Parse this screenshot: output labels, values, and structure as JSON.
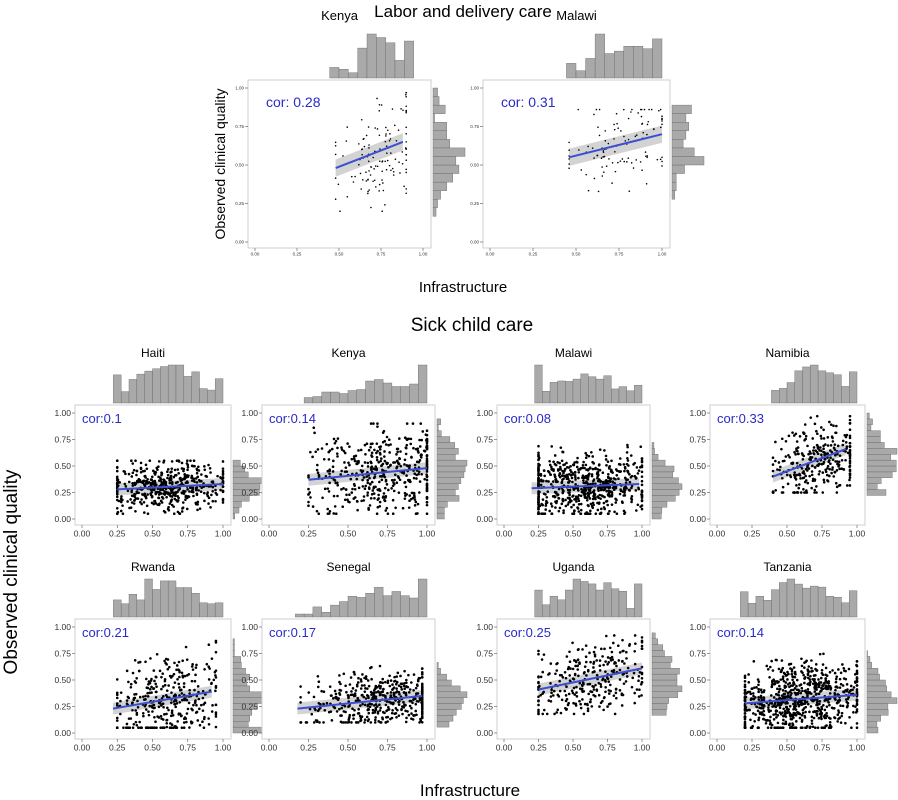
{
  "sections": {
    "labor": {
      "title": "Labor and delivery care",
      "ylabel": "Observed clinical quality",
      "xlabel": "Infrastructure"
    },
    "sick": {
      "title": "Sick child care",
      "ylabel": "Observed clinical quality",
      "xlabel": "Infrastructure"
    }
  },
  "colors": {
    "points": "#000000",
    "trend": "#3b4fd1",
    "band": "#c4c4c4",
    "hist": "#a9a9a9",
    "cor_text": "#2a2ac8",
    "panel_border": "#cfcfcf"
  },
  "chart_data": [
    {
      "type": "scatter",
      "group": "Labor and delivery care",
      "country": "Kenya",
      "cor_label": "cor: 0.28",
      "x_range": [
        0.48,
        0.9
      ],
      "y_range": [
        0.2,
        0.97
      ],
      "y_mean": 0.57,
      "trend": [
        [
          0.48,
          0.48
        ],
        [
          0.88,
          0.65
        ]
      ],
      "xlim": [
        0,
        1
      ],
      "ylim": [
        0,
        1
      ],
      "xticks": [
        "0.00",
        "0.25",
        "0.50",
        "0.75",
        "1.00"
      ],
      "yticks": [
        "0.00",
        "0.25",
        "0.50",
        "0.75",
        "1.00"
      ],
      "n_points": 130,
      "xmode": 0.75,
      "ymode": 0.55
    },
    {
      "type": "scatter",
      "group": "Labor and delivery care",
      "country": "Malawi",
      "cor_label": "cor: 0.31",
      "x_range": [
        0.46,
        1.0
      ],
      "y_range": [
        0.3,
        0.86
      ],
      "y_mean": 0.62,
      "trend": [
        [
          0.46,
          0.55
        ],
        [
          1.0,
          0.7
        ]
      ],
      "xlim": [
        0,
        1
      ],
      "ylim": [
        0,
        1
      ],
      "xticks": [
        "0.00",
        "0.25",
        "0.50",
        "0.75",
        "1.00"
      ],
      "yticks": [
        "0.00",
        "0.25",
        "0.50",
        "0.75",
        "1.00"
      ],
      "n_points": 110,
      "xmode": 0.78,
      "ymode": 0.63
    },
    {
      "type": "scatter",
      "group": "Sick child care",
      "country": "Haiti",
      "cor_label": "cor:0.1",
      "x_range": [
        0.25,
        1.0
      ],
      "y_range": [
        0.05,
        0.55
      ],
      "y_mean": 0.3,
      "trend": [
        [
          0.25,
          0.28
        ],
        [
          1.0,
          0.33
        ]
      ],
      "xlim": [
        0,
        1
      ],
      "ylim": [
        0,
        1
      ],
      "xticks": [
        "0.00",
        "0.25",
        "0.50",
        "0.75",
        "1.00"
      ],
      "yticks": [
        "0.00",
        "0.25",
        "0.50",
        "0.75",
        "1.00"
      ],
      "n_points": 500,
      "xmode": 0.6,
      "ymode": 0.3
    },
    {
      "type": "scatter",
      "group": "Sick child care",
      "country": "Kenya",
      "cor_label": "cor:0.14",
      "x_range": [
        0.25,
        1.0
      ],
      "y_range": [
        0.05,
        0.9
      ],
      "y_mean": 0.42,
      "trend": [
        [
          0.25,
          0.37
        ],
        [
          1.0,
          0.48
        ]
      ],
      "xlim": [
        0,
        1
      ],
      "ylim": [
        0,
        1
      ],
      "xticks": [
        "0.00",
        "0.25",
        "0.50",
        "0.75",
        "1.00"
      ],
      "yticks": [
        "0.00",
        "0.25",
        "0.50",
        "0.75",
        "1.00"
      ],
      "n_points": 450,
      "xmode": 0.7,
      "ymode": 0.4
    },
    {
      "type": "scatter",
      "group": "Sick child care",
      "country": "Malawi",
      "cor_label": "cor:0.08",
      "x_range": [
        0.25,
        1.0
      ],
      "y_range": [
        0.05,
        0.7
      ],
      "y_mean": 0.31,
      "trend": [
        [
          0.2,
          0.29
        ],
        [
          0.98,
          0.33
        ]
      ],
      "xlim": [
        0,
        1
      ],
      "ylim": [
        0,
        1
      ],
      "xticks": [
        "0.00",
        "0.25",
        "0.50",
        "0.75",
        "1.00"
      ],
      "yticks": [
        "0.00",
        "0.25",
        "0.50",
        "0.75",
        "1.00"
      ],
      "n_points": 650,
      "xmode": 0.58,
      "ymode": 0.3
    },
    {
      "type": "scatter",
      "group": "Sick child care",
      "country": "Namibia",
      "cor_label": "cor:0.33",
      "x_range": [
        0.4,
        0.95
      ],
      "y_range": [
        0.25,
        0.97
      ],
      "y_mean": 0.55,
      "trend": [
        [
          0.4,
          0.4
        ],
        [
          0.92,
          0.66
        ]
      ],
      "xlim": [
        0,
        1
      ],
      "ylim": [
        0,
        1
      ],
      "xticks": [
        "0.00",
        "0.25",
        "0.50",
        "0.75",
        "1.00"
      ],
      "yticks": [
        "0.00",
        "0.25",
        "0.50",
        "0.75",
        "1.00"
      ],
      "n_points": 300,
      "xmode": 0.72,
      "ymode": 0.5
    },
    {
      "type": "scatter",
      "group": "Sick child care",
      "country": "Rwanda",
      "cor_label": "cor:0.21",
      "x_range": [
        0.25,
        0.95
      ],
      "y_range": [
        0.05,
        0.9
      ],
      "y_mean": 0.33,
      "trend": [
        [
          0.22,
          0.23
        ],
        [
          0.92,
          0.39
        ]
      ],
      "xlim": [
        0,
        1
      ],
      "ylim": [
        0,
        1
      ],
      "xticks": [
        "0.00",
        "0.25",
        "0.50",
        "0.75",
        "1.00"
      ],
      "yticks": [
        "0.00",
        "0.25",
        "0.50",
        "0.75",
        "1.00"
      ],
      "n_points": 350,
      "xmode": 0.58,
      "ymode": 0.28
    },
    {
      "type": "scatter",
      "group": "Sick child care",
      "country": "Senegal",
      "cor_label": "cor:0.17",
      "x_range": [
        0.2,
        0.97
      ],
      "y_range": [
        0.1,
        0.66
      ],
      "y_mean": 0.3,
      "trend": [
        [
          0.18,
          0.23
        ],
        [
          0.97,
          0.35
        ]
      ],
      "xlim": [
        0,
        1
      ],
      "ylim": [
        0,
        1
      ],
      "xticks": [
        "0.00",
        "0.25",
        "0.50",
        "0.75",
        "1.00"
      ],
      "yticks": [
        "0.00",
        "0.25",
        "0.50",
        "0.75",
        "1.00"
      ],
      "n_points": 450,
      "xmode": 0.72,
      "ymode": 0.28
    },
    {
      "type": "scatter",
      "group": "Sick child care",
      "country": "Uganda",
      "cor_label": "cor:0.25",
      "x_range": [
        0.25,
        1.0
      ],
      "y_range": [
        0.18,
        0.92
      ],
      "y_mean": 0.5,
      "trend": [
        [
          0.25,
          0.41
        ],
        [
          1.0,
          0.61
        ]
      ],
      "xlim": [
        0,
        1
      ],
      "ylim": [
        0,
        1
      ],
      "xticks": [
        "0.00",
        "0.25",
        "0.50",
        "0.75",
        "1.00"
      ],
      "yticks": [
        "0.00",
        "0.25",
        "0.50",
        "0.75",
        "1.00"
      ],
      "n_points": 300,
      "xmode": 0.62,
      "ymode": 0.5
    },
    {
      "type": "scatter",
      "group": "Sick child care",
      "country": "Tanzania",
      "cor_label": "cor:0.14",
      "x_range": [
        0.2,
        1.0
      ],
      "y_range": [
        0.05,
        0.75
      ],
      "y_mean": 0.32,
      "trend": [
        [
          0.2,
          0.28
        ],
        [
          1.0,
          0.36
        ]
      ],
      "xlim": [
        0,
        1
      ],
      "ylim": [
        0,
        1
      ],
      "xticks": [
        "0.00",
        "0.25",
        "0.50",
        "0.75",
        "1.00"
      ],
      "yticks": [
        "0.00",
        "0.25",
        "0.50",
        "0.75",
        "1.00"
      ],
      "n_points": 750,
      "xmode": 0.6,
      "ymode": 0.3
    }
  ]
}
